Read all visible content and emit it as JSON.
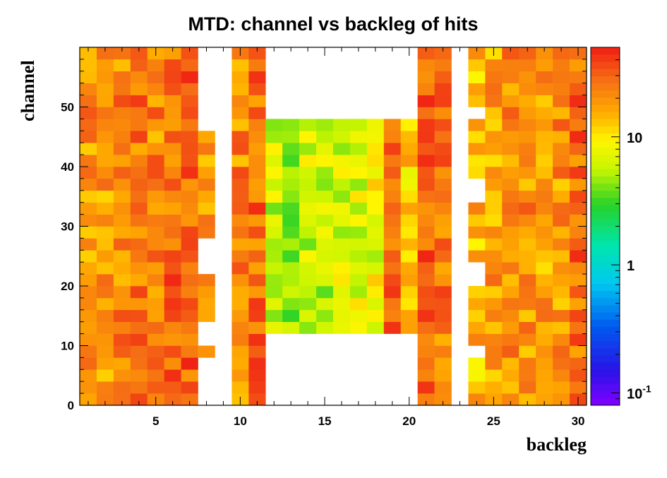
{
  "chart_data": {
    "type": "heatmap",
    "title": "MTD: channel vs backleg of hits",
    "xlabel": "backleg",
    "ylabel": "channel",
    "xlim": [
      0.5,
      30.5
    ],
    "ylim": [
      0,
      60
    ],
    "x_bin_width": 1,
    "y_bin_width": 2,
    "x_ticks": [
      {
        "value": 5,
        "label": "5"
      },
      {
        "value": 10,
        "label": "10"
      },
      {
        "value": 15,
        "label": "15"
      },
      {
        "value": 20,
        "label": "20"
      },
      {
        "value": 25,
        "label": "25"
      },
      {
        "value": 30,
        "label": "30"
      }
    ],
    "y_ticks": [
      {
        "value": 0,
        "label": "0"
      },
      {
        "value": 10,
        "label": "10"
      },
      {
        "value": 20,
        "label": "20"
      },
      {
        "value": 30,
        "label": "30"
      },
      {
        "value": 40,
        "label": "40"
      },
      {
        "value": 50,
        "label": "50"
      }
    ],
    "z_scale": "log",
    "zlim": [
      0.08,
      50
    ],
    "colorbar_ticks": [
      {
        "value": 10,
        "label": "10"
      },
      {
        "value": 1,
        "label": "1"
      },
      {
        "value": 0.1,
        "label": "10",
        "exponent": "-1"
      }
    ],
    "grid": false,
    "empty_regions": [
      {
        "backlegs": [
          9
        ],
        "channels": [
          0,
          60
        ]
      },
      {
        "backlegs": [
          8
        ],
        "channels": [
          46,
          60
        ]
      },
      {
        "backlegs": [
          8
        ],
        "channels": [
          22,
          28
        ]
      },
      {
        "backlegs": [
          8
        ],
        "channels": [
          10,
          14
        ]
      },
      {
        "backlegs": [
          8
        ],
        "channels": [
          0,
          8
        ]
      },
      {
        "backlegs": [
          12,
          13,
          14,
          15,
          16,
          17,
          18,
          19,
          20
        ],
        "channels": [
          48,
          60
        ]
      },
      {
        "backlegs": [
          12,
          13,
          14,
          15,
          16,
          17,
          18,
          19,
          20
        ],
        "channels": [
          0,
          12
        ]
      },
      {
        "backlegs": [
          23
        ],
        "channels": [
          0,
          60
        ]
      },
      {
        "backlegs": [
          24
        ],
        "channels": [
          48,
          50
        ]
      },
      {
        "backlegs": [
          24
        ],
        "channels": [
          34,
          38
        ]
      },
      {
        "backlegs": [
          24
        ],
        "channels": [
          20,
          24
        ]
      },
      {
        "backlegs": [
          24
        ],
        "channels": [
          8,
          10
        ]
      }
    ],
    "backleg_levels": {
      "1": 20,
      "2": 18,
      "3": 22,
      "4": 25,
      "5": 22,
      "6": 28,
      "7": 30,
      "8": 18,
      "10": 22,
      "11": 28,
      "12": 6,
      "13": 5,
      "14": 6,
      "15": 6,
      "16": 7,
      "17": 7,
      "18": 8,
      "19": 30,
      "20": 12,
      "21": 30,
      "22": 25,
      "24": 14,
      "25": 18,
      "26": 20,
      "27": 20,
      "28": 18,
      "29": 20,
      "30": 28
    }
  }
}
